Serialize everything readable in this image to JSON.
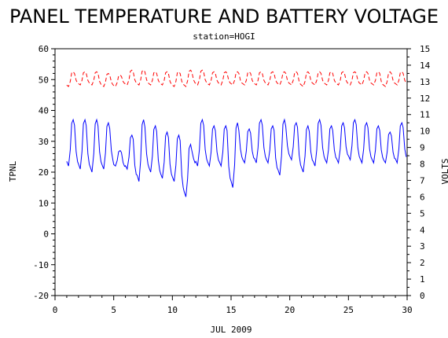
{
  "chart_data": {
    "type": "line",
    "title": "PANEL TEMPERATURE AND BATTERY VOLTAGE",
    "subtitle": "station=HOGI",
    "xlabel": "JUL 2009",
    "ylabel_left": "TPNL",
    "ylabel_right": "VOLTS",
    "xlim": [
      0,
      30
    ],
    "ylim_left": [
      -20,
      60
    ],
    "ylim_right": [
      0,
      15
    ],
    "xticks": [
      0,
      5,
      10,
      15,
      20,
      25,
      30
    ],
    "yticks_left": [
      -20,
      -10,
      0,
      10,
      20,
      30,
      40,
      50,
      60
    ],
    "yticks_right": [
      0,
      1,
      2,
      3,
      4,
      5,
      6,
      7,
      8,
      9,
      10,
      11,
      12,
      13,
      14,
      15
    ],
    "grid": false,
    "series": [
      {
        "name": "",
        "axis": "left",
        "color": "#0000ff",
        "style": "solid",
        "daily_max": [
          37,
          37,
          37,
          36,
          27,
          32,
          37,
          35,
          33,
          32,
          29,
          37,
          35,
          35,
          36,
          34,
          37,
          35,
          37,
          36,
          35,
          37,
          35,
          36,
          37,
          36,
          35,
          33,
          36
        ],
        "daily_min": [
          22,
          21,
          20,
          21,
          22,
          21,
          17,
          20,
          18,
          17,
          12,
          22,
          22,
          22,
          15,
          23,
          23,
          23,
          19,
          24,
          20,
          22,
          23,
          23,
          24,
          23,
          23,
          23,
          23
        ]
      },
      {
        "name": "",
        "axis": "right",
        "color": "#ff0000",
        "style": "dashed",
        "daily_max": [
          13.6,
          13.6,
          13.6,
          13.5,
          13.4,
          13.7,
          13.7,
          13.6,
          13.6,
          13.6,
          13.7,
          13.7,
          13.6,
          13.6,
          13.6,
          13.6,
          13.6,
          13.6,
          13.6,
          13.6,
          13.6,
          13.6,
          13.6,
          13.6,
          13.6,
          13.6,
          13.6,
          13.6,
          13.6
        ],
        "daily_min": [
          12.7,
          12.8,
          12.8,
          12.7,
          12.7,
          12.8,
          12.8,
          12.8,
          12.8,
          12.7,
          12.7,
          12.8,
          12.8,
          12.8,
          12.8,
          12.8,
          12.8,
          12.8,
          12.8,
          12.8,
          12.7,
          12.8,
          12.8,
          12.8,
          12.8,
          12.8,
          12.8,
          12.7,
          12.8
        ]
      }
    ]
  }
}
